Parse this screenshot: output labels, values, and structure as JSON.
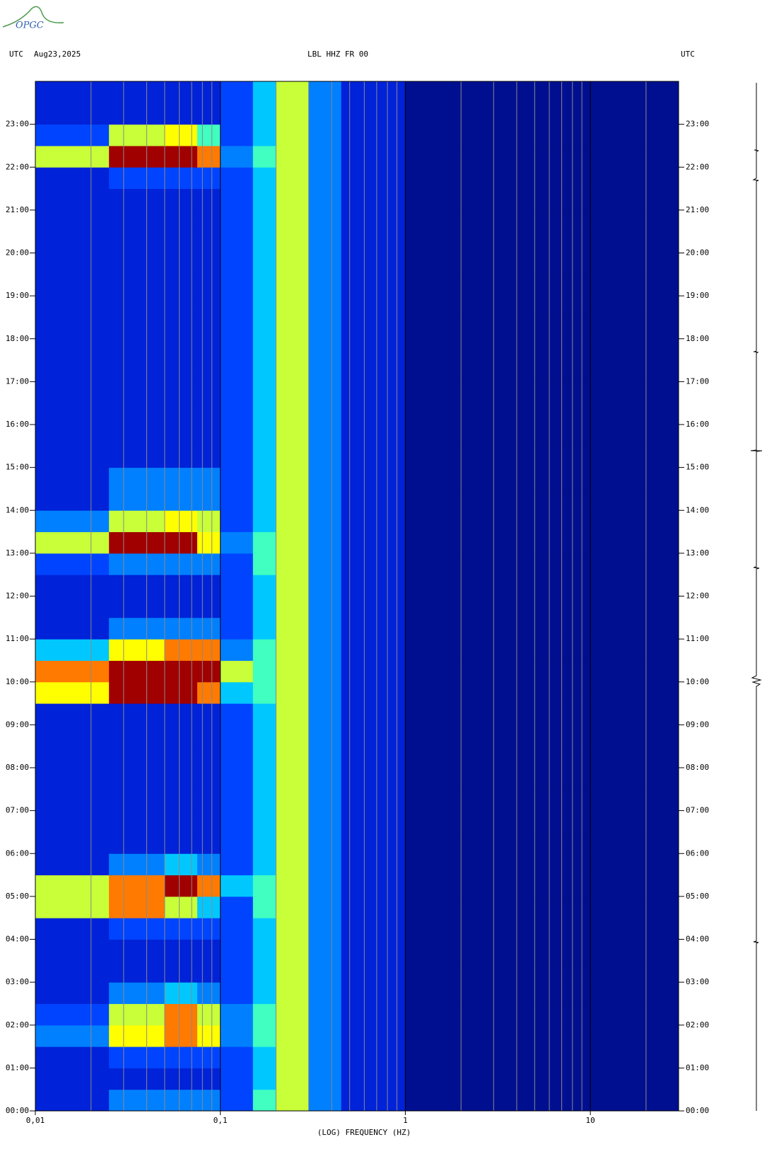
{
  "logo": "OPGC",
  "chart_data": {
    "type": "spectrogram",
    "timezone_left": "UTC",
    "date": "Aug23,2025",
    "title": "LBL HHZ FR 00",
    "timezone_right": "UTC",
    "xlabel": "(LOG) FREQUENCY (HZ)",
    "xscale": "log",
    "xlim": [
      0.01,
      30
    ],
    "xticks": [
      {
        "value": 0.01,
        "label": "0,01"
      },
      {
        "value": 0.1,
        "label": "0,1"
      },
      {
        "value": 1,
        "label": "1"
      },
      {
        "value": 10,
        "label": "10"
      }
    ],
    "xgrid": [
      0.02,
      0.03,
      0.04,
      0.05,
      0.06,
      0.07,
      0.08,
      0.09,
      0.2,
      0.3,
      0.4,
      0.5,
      0.6,
      0.7,
      0.8,
      0.9,
      2,
      3,
      4,
      5,
      6,
      7,
      8,
      9,
      20
    ],
    "ylim": [
      0,
      24
    ],
    "yticks": [
      {
        "value": 0,
        "label": "00:00"
      },
      {
        "value": 1,
        "label": "01:00"
      },
      {
        "value": 2,
        "label": "02:00"
      },
      {
        "value": 3,
        "label": "03:00"
      },
      {
        "value": 4,
        "label": "04:00"
      },
      {
        "value": 5,
        "label": "05:00"
      },
      {
        "value": 6,
        "label": "06:00"
      },
      {
        "value": 7,
        "label": "07:00"
      },
      {
        "value": 8,
        "label": "08:00"
      },
      {
        "value": 9,
        "label": "09:00"
      },
      {
        "value": 10,
        "label": "10:00"
      },
      {
        "value": 11,
        "label": "11:00"
      },
      {
        "value": 12,
        "label": "12:00"
      },
      {
        "value": 13,
        "label": "13:00"
      },
      {
        "value": 14,
        "label": "14:00"
      },
      {
        "value": 15,
        "label": "15:00"
      },
      {
        "value": 16,
        "label": "16:00"
      },
      {
        "value": 17,
        "label": "17:00"
      },
      {
        "value": 18,
        "label": "18:00"
      },
      {
        "value": 19,
        "label": "19:00"
      },
      {
        "value": 20,
        "label": "20:00"
      },
      {
        "value": 21,
        "label": "21:00"
      },
      {
        "value": 22,
        "label": "22:00"
      },
      {
        "value": 23,
        "label": "23:00"
      }
    ],
    "x_edges": [
      0.01,
      0.025,
      0.05,
      0.075,
      0.1,
      0.15,
      0.2,
      0.3,
      0.45,
      1,
      3,
      10,
      30
    ],
    "colorscale": [
      "#000f8f",
      "#0022d8",
      "#0044ff",
      "#0080ff",
      "#00c8ff",
      "#40ffc0",
      "#c8ff38",
      "#ffff00",
      "#ff7a00",
      "#a00000"
    ],
    "z": [
      [
        1,
        3,
        3,
        3,
        2,
        5,
        6,
        3,
        1,
        0,
        0,
        0
      ],
      [
        1,
        1,
        1,
        1,
        2,
        4,
        6,
        3,
        1,
        0,
        0,
        0
      ],
      [
        1,
        2,
        2,
        2,
        2,
        4,
        6,
        3,
        1,
        0,
        0,
        0
      ],
      [
        3,
        7,
        8,
        7,
        3,
        5,
        6,
        3,
        1,
        0,
        0,
        0
      ],
      [
        2,
        6,
        8,
        6,
        3,
        5,
        6,
        3,
        1,
        0,
        0,
        0
      ],
      [
        1,
        3,
        4,
        3,
        2,
        4,
        6,
        3,
        1,
        0,
        0,
        0
      ],
      [
        1,
        1,
        1,
        1,
        2,
        4,
        6,
        3,
        1,
        0,
        0,
        0
      ],
      [
        1,
        1,
        1,
        1,
        2,
        4,
        6,
        3,
        1,
        0,
        0,
        0
      ],
      [
        1,
        2,
        2,
        2,
        2,
        4,
        6,
        3,
        1,
        0,
        0,
        0
      ],
      [
        6,
        8,
        6,
        4,
        2,
        5,
        6,
        3,
        1,
        0,
        0,
        0
      ],
      [
        6,
        8,
        9,
        8,
        4,
        5,
        6,
        3,
        1,
        0,
        0,
        0
      ],
      [
        1,
        3,
        4,
        3,
        2,
        4,
        6,
        3,
        1,
        0,
        0,
        0
      ],
      [
        1,
        1,
        1,
        1,
        2,
        4,
        6,
        3,
        1,
        0,
        0,
        0
      ],
      [
        1,
        1,
        1,
        1,
        2,
        4,
        6,
        3,
        1,
        0,
        0,
        0
      ],
      [
        1,
        1,
        1,
        1,
        2,
        4,
        6,
        3,
        1,
        0,
        0,
        0
      ],
      [
        1,
        1,
        1,
        1,
        2,
        4,
        6,
        3,
        1,
        0,
        0,
        0
      ],
      [
        1,
        1,
        1,
        1,
        2,
        4,
        6,
        3,
        1,
        0,
        0,
        0
      ],
      [
        1,
        1,
        1,
        1,
        2,
        4,
        6,
        3,
        1,
        0,
        0,
        0
      ],
      [
        1,
        1,
        1,
        1,
        2,
        4,
        6,
        3,
        1,
        0,
        0,
        0
      ],
      [
        7,
        9,
        9,
        8,
        4,
        5,
        6,
        3,
        1,
        0,
        0,
        0
      ],
      [
        8,
        9,
        9,
        9,
        6,
        5,
        6,
        3,
        1,
        0,
        0,
        0
      ],
      [
        4,
        7,
        8,
        8,
        3,
        5,
        6,
        3,
        1,
        0,
        0,
        0
      ],
      [
        1,
        3,
        3,
        3,
        2,
        4,
        6,
        3,
        1,
        0,
        0,
        0
      ],
      [
        1,
        1,
        1,
        1,
        2,
        4,
        6,
        3,
        1,
        0,
        0,
        0
      ],
      [
        1,
        1,
        1,
        1,
        2,
        4,
        6,
        3,
        1,
        0,
        0,
        0
      ],
      [
        2,
        3,
        3,
        3,
        2,
        5,
        6,
        3,
        1,
        0,
        0,
        0
      ],
      [
        6,
        9,
        9,
        7,
        3,
        5,
        6,
        3,
        1,
        0,
        0,
        0
      ],
      [
        3,
        6,
        7,
        6,
        2,
        4,
        6,
        3,
        1,
        0,
        0,
        0
      ],
      [
        1,
        3,
        3,
        3,
        2,
        4,
        6,
        3,
        1,
        0,
        0,
        0
      ],
      [
        1,
        3,
        3,
        3,
        2,
        4,
        6,
        3,
        1,
        0,
        0,
        0
      ],
      [
        1,
        1,
        1,
        1,
        2,
        4,
        6,
        3,
        1,
        0,
        0,
        0
      ],
      [
        1,
        1,
        1,
        1,
        2,
        4,
        6,
        3,
        1,
        0,
        0,
        0
      ],
      [
        1,
        1,
        1,
        1,
        2,
        4,
        6,
        3,
        1,
        0,
        0,
        0
      ],
      [
        1,
        1,
        1,
        1,
        2,
        4,
        6,
        3,
        1,
        0,
        0,
        0
      ],
      [
        1,
        1,
        1,
        1,
        2,
        4,
        6,
        3,
        1,
        0,
        0,
        0
      ],
      [
        1,
        1,
        1,
        1,
        2,
        4,
        6,
        3,
        1,
        0,
        0,
        0
      ],
      [
        1,
        1,
        1,
        1,
        2,
        4,
        6,
        3,
        1,
        0,
        0,
        0
      ],
      [
        1,
        1,
        1,
        1,
        2,
        4,
        6,
        3,
        1,
        0,
        0,
        0
      ],
      [
        1,
        1,
        1,
        1,
        2,
        4,
        6,
        3,
        1,
        0,
        0,
        0
      ],
      [
        1,
        1,
        1,
        1,
        2,
        4,
        6,
        3,
        1,
        0,
        0,
        0
      ],
      [
        1,
        1,
        1,
        1,
        2,
        4,
        6,
        3,
        1,
        0,
        0,
        0
      ],
      [
        1,
        1,
        1,
        1,
        2,
        4,
        6,
        3,
        1,
        0,
        0,
        0
      ],
      [
        1,
        1,
        1,
        1,
        2,
        4,
        6,
        3,
        1,
        0,
        0,
        0
      ],
      [
        1,
        2,
        2,
        2,
        2,
        4,
        6,
        3,
        1,
        0,
        0,
        0
      ],
      [
        6,
        9,
        9,
        8,
        3,
        5,
        6,
        3,
        1,
        0,
        0,
        0
      ],
      [
        2,
        6,
        7,
        5,
        2,
        4,
        6,
        3,
        1,
        0,
        0,
        0
      ],
      [
        1,
        1,
        1,
        1,
        2,
        4,
        6,
        3,
        1,
        0,
        0,
        0
      ],
      [
        1,
        1,
        1,
        1,
        2,
        4,
        6,
        3,
        1,
        0,
        0,
        0
      ]
    ]
  }
}
